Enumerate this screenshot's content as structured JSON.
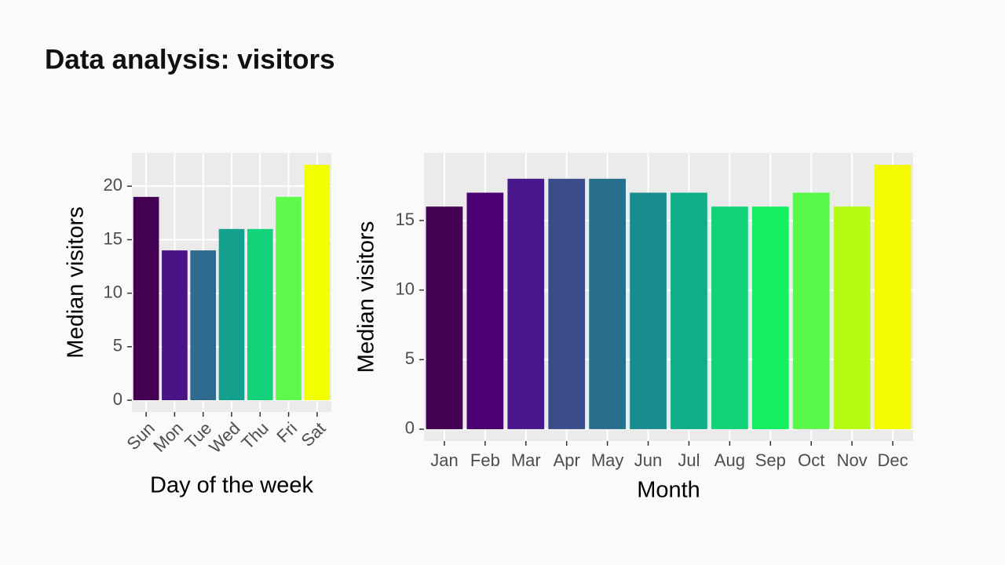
{
  "title": "Data analysis: visitors",
  "chart_data": [
    {
      "type": "bar",
      "xlabel": "Day of the week",
      "ylabel": "Median visitors",
      "categories": [
        "Sun",
        "Mon",
        "Tue",
        "Wed",
        "Thu",
        "Fri",
        "Sat"
      ],
      "values": [
        19,
        14,
        14,
        16,
        16,
        19,
        22
      ],
      "colors": [
        "#440154",
        "#4a1486",
        "#2f6b8e",
        "#13a08d",
        "#12d27a",
        "#5dfa4c",
        "#f2ff00"
      ],
      "ylim": [
        -1.1,
        23.1
      ],
      "yticks": [
        0,
        5,
        10,
        15,
        20
      ],
      "grid": true,
      "rotate_xticks": true
    },
    {
      "type": "bar",
      "xlabel": "Month",
      "ylabel": "Median visitors",
      "categories": [
        "Jan",
        "Feb",
        "Mar",
        "Apr",
        "May",
        "Jun",
        "Jul",
        "Aug",
        "Sep",
        "Oct",
        "Nov",
        "Dec"
      ],
      "values": [
        16,
        17,
        18,
        18,
        18,
        17,
        17,
        16,
        16,
        17,
        16,
        19
      ],
      "colors": [
        "#440154",
        "#4b0071",
        "#48188a",
        "#3b4c8a",
        "#29708d",
        "#1a8c8f",
        "#10ad88",
        "#12d27a",
        "#15ef60",
        "#5af84b",
        "#b4fa12",
        "#f4fa00"
      ],
      "ylim": [
        -0.85,
        19.85
      ],
      "yticks": [
        0,
        5,
        10,
        15
      ],
      "grid": true,
      "rotate_xticks": false
    }
  ]
}
